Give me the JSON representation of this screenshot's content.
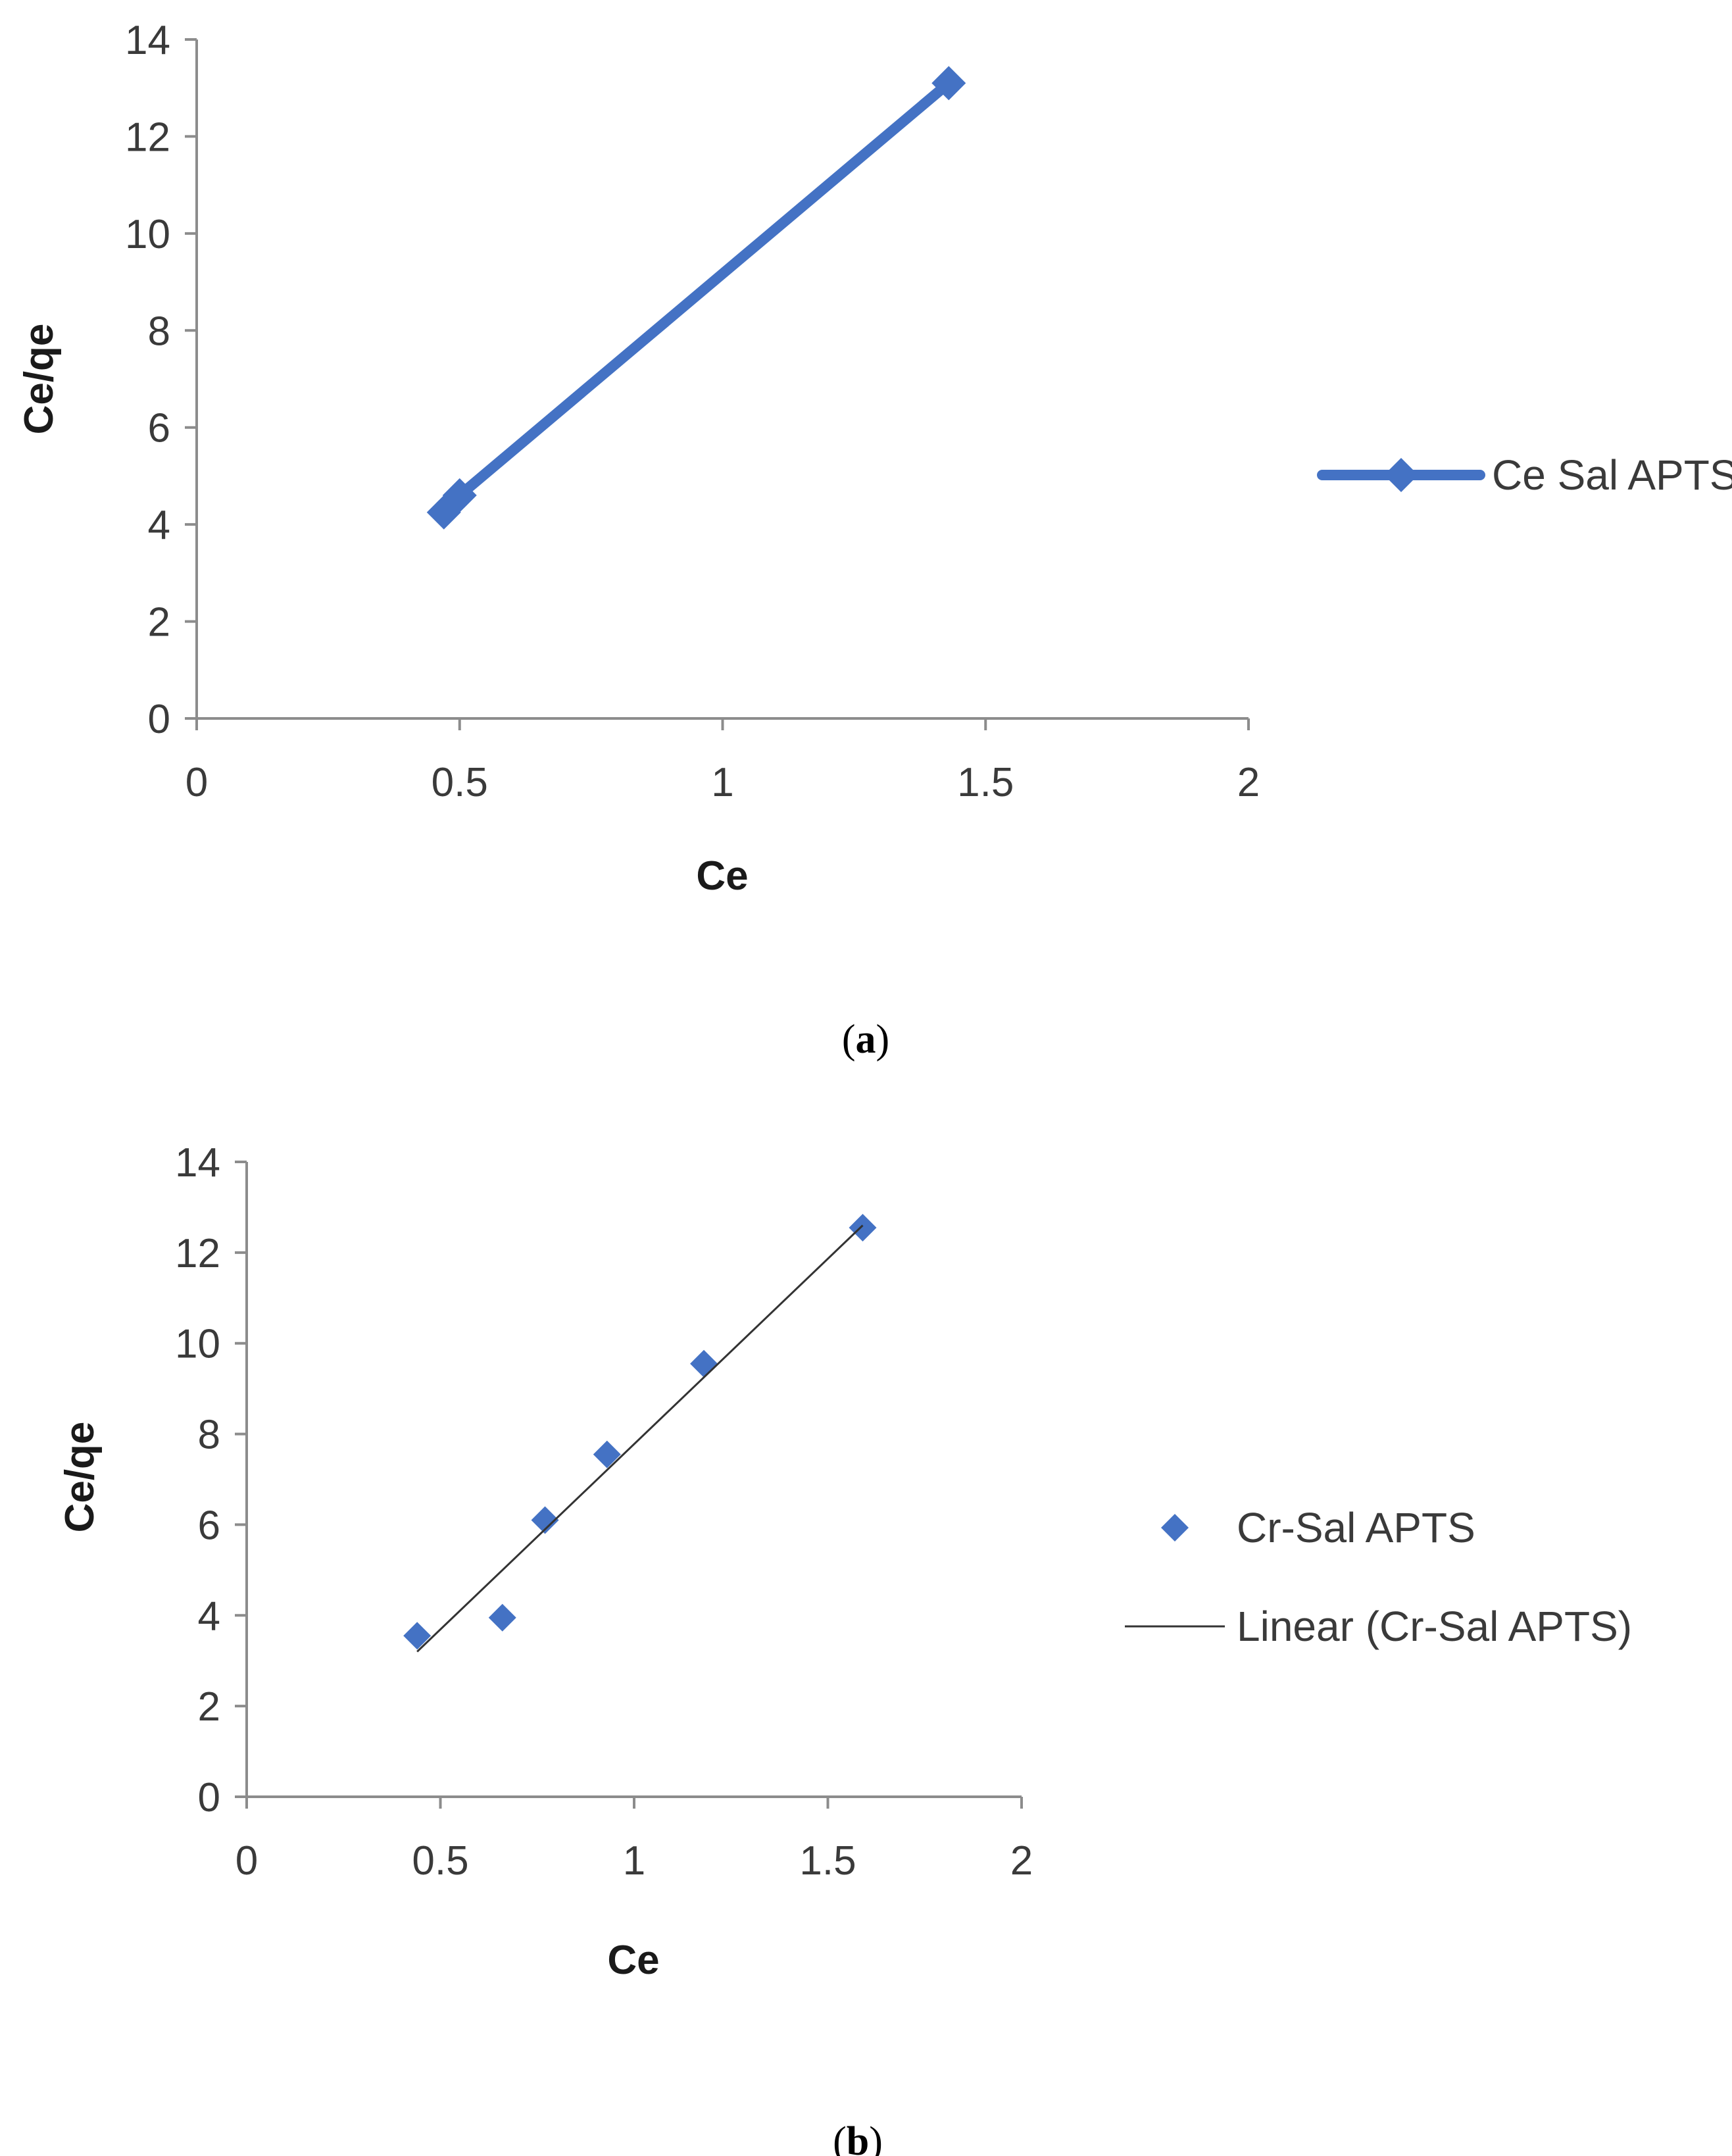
{
  "chart_data": [
    {
      "panel": "(a)",
      "panel_letter": "a",
      "type": "line",
      "xlabel": "Ce",
      "ylabel": "Ce/qe",
      "xlim": [
        0,
        2
      ],
      "ylim": [
        0,
        14
      ],
      "xticks": [
        "0",
        "0.5",
        "1",
        "1.5",
        "2"
      ],
      "yticks": [
        "0",
        "2",
        "4",
        "6",
        "8",
        "10",
        "12",
        "14"
      ],
      "legend_position": "right",
      "series": [
        {
          "name": "Ce Sal APTS",
          "style": "line-with-diamond-markers",
          "color": "#4472C4",
          "x": [
            0.47,
            0.5,
            1.43
          ],
          "y": [
            4.25,
            4.6,
            13.1
          ]
        }
      ]
    },
    {
      "panel": "(b)",
      "panel_letter": "b",
      "type": "scatter",
      "xlabel": "Ce",
      "ylabel": "Ce/qe",
      "xlim": [
        0,
        2
      ],
      "ylim": [
        0,
        14
      ],
      "xticks": [
        "0",
        "0.5",
        "1",
        "1.5",
        "2"
      ],
      "yticks": [
        "0",
        "2",
        "4",
        "6",
        "8",
        "10",
        "12",
        "14"
      ],
      "legend_position": "right",
      "series": [
        {
          "name": "Cr-Sal APTS",
          "style": "diamond-markers",
          "color": "#4472C4",
          "x": [
            0.44,
            0.66,
            0.77,
            0.93,
            1.18,
            1.59
          ],
          "y": [
            3.55,
            3.95,
            6.1,
            7.55,
            9.55,
            12.55
          ]
        },
        {
          "name": "Linear (Cr-Sal APTS)",
          "style": "trendline",
          "color": "#333333",
          "x": [
            0.44,
            1.59
          ],
          "y": [
            3.2,
            12.6
          ]
        }
      ]
    }
  ]
}
